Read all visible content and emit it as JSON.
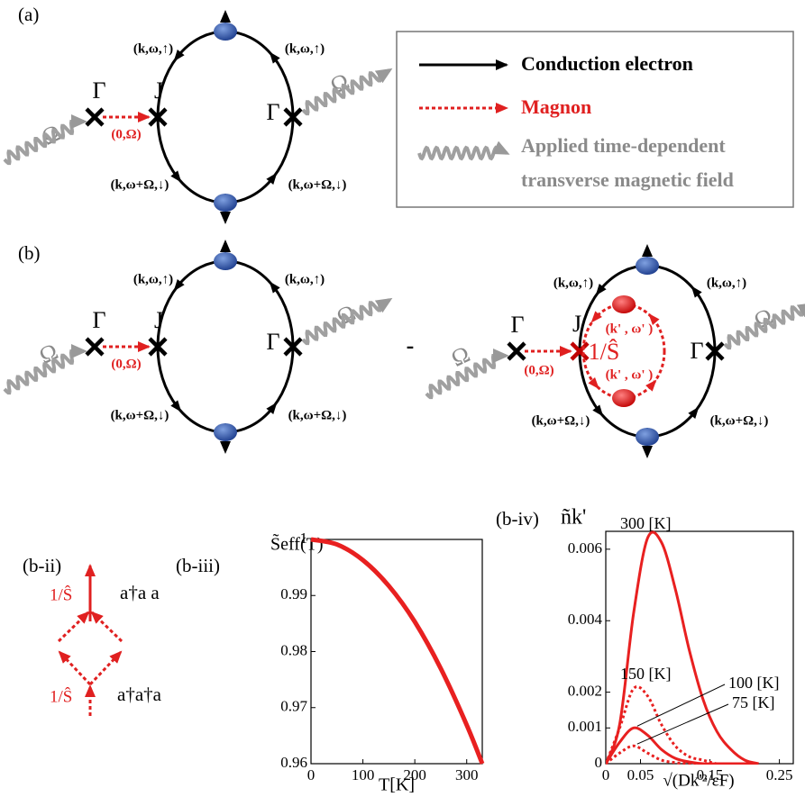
{
  "diagram_a": {
    "panel": "(a)",
    "gamma_left": "Γ",
    "j": "J",
    "gamma_right": "Γ",
    "magnon": "(0,Ω)",
    "field_left": "Ω",
    "field_right": "Ω",
    "up_left": "(k,ω,↑)",
    "up_right": "(k,ω,↑)",
    "down_left": "(k,ω+Ω,↓)",
    "down_right": "(k,ω+Ω,↓)"
  },
  "legend": {
    "electron": "Conduction electron",
    "magnon": "Magnon",
    "field": [
      "Applied time-dependent",
      "transverse magnetic field"
    ]
  },
  "diagram_b": {
    "panel": "(b)",
    "minus": "-",
    "left": {
      "gamma_left": "Γ",
      "j": "J",
      "gamma_right": "Γ",
      "magnon": "(0,Ω)",
      "field_left": "Ω",
      "field_right": "Ω",
      "up_left": "(k,ω,↑)",
      "up_right": "(k,ω,↑)",
      "down_left": "(k,ω+Ω,↓)",
      "down_right": "(k,ω+Ω,↓)"
    },
    "right": {
      "gamma_left": "Γ",
      "j": "J",
      "gamma_right": "Γ",
      "magnon": "(0,Ω)",
      "vertex": "1/Ŝ",
      "inner_upper": "(k' , ω' )",
      "inner_lower": "(k' , ω' )",
      "field_left": "Ω",
      "field_right": "Ω",
      "up_left": "(k,ω,↑)",
      "up_right": "(k,ω,↑)",
      "down_left": "(k,ω+Ω,↓)",
      "down_right": "(k,ω+Ω,↓)"
    }
  },
  "vertices": {
    "panel": "(b-ii)",
    "upper": {
      "coupling": "1/Ŝ",
      "operator": "a†a a"
    },
    "lower": {
      "coupling": "1/Ŝ",
      "operator": "a†a†a"
    }
  },
  "chart_data": [
    {
      "type": "line",
      "panel": "(b-iii)",
      "ylabel": "S̃eff(T)",
      "xlabel": "T[K]",
      "x": [
        0,
        50,
        100,
        150,
        200,
        250,
        300,
        330
      ],
      "values": [
        1,
        0.9991,
        0.9963,
        0.9917,
        0.9853,
        0.977,
        0.9669,
        0.96
      ],
      "color": "#e82020",
      "xlim": [
        0,
        330
      ],
      "xticks": [
        0,
        100,
        200,
        300
      ],
      "ylim": [
        0.96,
        1
      ],
      "yticks": [
        0.96,
        0.97,
        0.98,
        0.99,
        1
      ]
    },
    {
      "type": "line",
      "panel": "(b-iv)",
      "ylabel": "ñk'",
      "xlabel": "√(Dk'²/εF)",
      "x": [
        0,
        0.02,
        0.04,
        0.06,
        0.08,
        0.1,
        0.12,
        0.14,
        0.16,
        0.18,
        0.2,
        0.22
      ],
      "series": [
        {
          "name": "300 [K]",
          "color": "#e82020",
          "style": "solid",
          "values": [
            0,
            0.0011,
            0.0042,
            0.0063,
            0.0062,
            0.0049,
            0.0032,
            0.0018,
            0.0009,
            0.0004,
            0.0001,
            0
          ]
        },
        {
          "name": "150 [K]",
          "color": "#e82020",
          "style": "dotted",
          "values": [
            0,
            0.001,
            0.0021,
            0.0019,
            0.0011,
            0.0005,
            0.0002,
            0.0001,
            0,
            0,
            0,
            0
          ]
        },
        {
          "name": "100 [K]",
          "color": "#e82020",
          "style": "solid",
          "values": [
            0,
            0.0006,
            0.001,
            0.0008,
            0.0004,
            0.00015,
            5e-05,
            0,
            0,
            0,
            0,
            0
          ]
        },
        {
          "name": "75 [K]",
          "color": "#e82020",
          "style": "dotted",
          "values": [
            0,
            0.0003,
            0.0005,
            0.0003,
            0.0001,
            3e-05,
            0,
            0,
            0,
            0,
            0,
            0
          ]
        }
      ],
      "xlim": [
        0,
        0.27
      ],
      "xticks": [
        0,
        0.05,
        0.15,
        0.25
      ],
      "ylim": [
        0,
        0.0065
      ],
      "yticks": [
        0,
        0.001,
        0.002,
        0.004,
        0.006
      ]
    }
  ]
}
